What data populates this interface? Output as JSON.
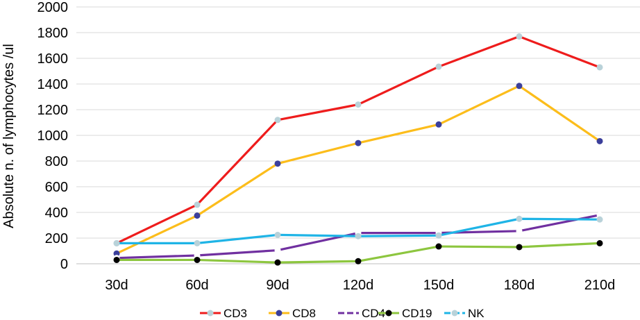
{
  "chart_data": {
    "type": "line",
    "title": "",
    "xlabel": "",
    "ylabel": "Absolute n. of lymphocytes /ul",
    "ylim": [
      0,
      2000
    ],
    "yticks": [
      0,
      200,
      400,
      600,
      800,
      1000,
      1200,
      1400,
      1600,
      1800,
      2000
    ],
    "grid": true,
    "legend_position": "bottom",
    "categories": [
      "30d",
      "60d",
      "90d",
      "120d",
      "150d",
      "180d",
      "210d"
    ],
    "series": [
      {
        "name": "CD3",
        "color": "#ee1c1c",
        "marker": "#b9d2d9",
        "dashed": false,
        "values": [
          160,
          460,
          1120,
          1240,
          1535,
          1770,
          1530
        ]
      },
      {
        "name": "CD8",
        "color": "#fcbd1b",
        "marker": "#3b3f9b",
        "dashed": false,
        "values": [
          80,
          375,
          780,
          940,
          1085,
          1385,
          955
        ]
      },
      {
        "name": "CD4",
        "color": "#7030a0",
        "marker": "#ffffff",
        "dashed": true,
        "values": [
          45,
          65,
          105,
          240,
          240,
          255,
          380
        ]
      },
      {
        "name": "CD19",
        "color": "#8dc63f",
        "marker": "#000000",
        "dashed": false,
        "values": [
          30,
          30,
          10,
          20,
          135,
          130,
          160
        ]
      },
      {
        "name": "NK",
        "color": "#1fb4e6",
        "marker": "#b9d2d9",
        "dashed": true,
        "values": [
          160,
          160,
          225,
          215,
          220,
          350,
          345
        ]
      }
    ]
  }
}
